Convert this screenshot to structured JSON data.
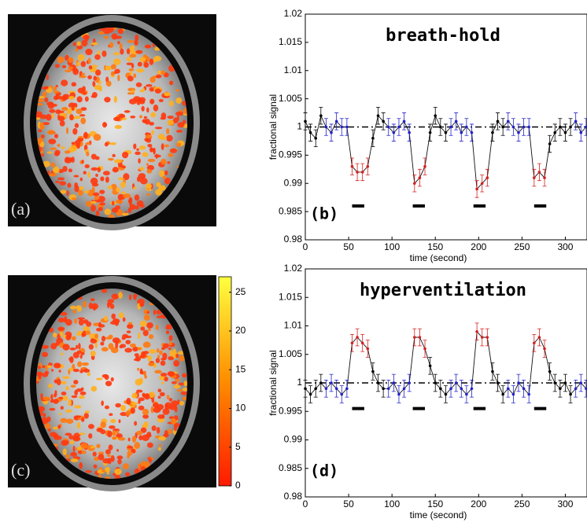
{
  "images": [
    {
      "label": "(a)"
    },
    {
      "label": "(c)",
      "colorbar": {
        "lim": [
          0,
          27
        ],
        "ticks": [
          0,
          5,
          10,
          15,
          20,
          25
        ]
      }
    }
  ],
  "chart_data": [
    {
      "type": "line",
      "title": "breath-hold",
      "panel": "(b)",
      "xlabel": "time (second)",
      "ylabel": "fractional signal",
      "xlim": [
        0,
        325
      ],
      "xticks": [
        0,
        50,
        100,
        150,
        200,
        250,
        300
      ],
      "ylim": [
        0.98,
        1.02
      ],
      "yticks": [
        0.98,
        0.985,
        0.99,
        0.995,
        1,
        1.005,
        1.01,
        1.015,
        1.02
      ],
      "reference": 1,
      "error": 0.0015,
      "bar_level": 0.986,
      "stimulus_bars": [
        [
          54,
          68
        ],
        [
          124,
          138
        ],
        [
          194,
          208
        ],
        [
          264,
          278
        ]
      ],
      "x": [
        0,
        6,
        12,
        18,
        24,
        30,
        36,
        42,
        48,
        54,
        60,
        66,
        72,
        78,
        84,
        90,
        96,
        102,
        108,
        114,
        120,
        126,
        132,
        138,
        144,
        150,
        156,
        162,
        168,
        174,
        180,
        186,
        192,
        198,
        204,
        210,
        216,
        222,
        228,
        234,
        240,
        246,
        252,
        258,
        264,
        270,
        276,
        282,
        288,
        294,
        300,
        306,
        312,
        318,
        324
      ],
      "values": [
        1.001,
        0.999,
        0.998,
        1.002,
        1.0,
        0.999,
        1.001,
        1.0,
        1.0,
        0.993,
        0.992,
        0.992,
        0.993,
        0.998,
        1.002,
        1.001,
        1.0,
        0.999,
        1.0,
        1.001,
        0.999,
        0.99,
        0.991,
        0.993,
        0.999,
        1.002,
        1.0,
        0.999,
        1.0,
        1.001,
        0.999,
        1.0,
        0.999,
        0.989,
        0.99,
        0.991,
        0.999,
        1.001,
        1.0,
        1.001,
        1.0,
        0.999,
        1.0,
        1.0,
        0.991,
        0.992,
        0.991,
        0.997,
        0.999,
        1.0,
        0.999,
        1.0,
        1.001,
        0.999,
        1.0
      ],
      "marker_colors": [
        "#000",
        "#000",
        "#000",
        "#000",
        "#2222cc",
        "#2222cc",
        "#2222cc",
        "#2222cc",
        "#2222cc",
        "#d42020",
        "#d42020",
        "#d42020",
        "#d42020",
        "#000",
        "#000",
        "#000",
        "#2222cc",
        "#2222cc",
        "#2222cc",
        "#2222cc",
        "#2222cc",
        "#d42020",
        "#d42020",
        "#d42020",
        "#000",
        "#000",
        "#000",
        "#000",
        "#2222cc",
        "#2222cc",
        "#2222cc",
        "#2222cc",
        "#2222cc",
        "#d42020",
        "#d42020",
        "#d42020",
        "#000",
        "#000",
        "#000",
        "#2222cc",
        "#2222cc",
        "#2222cc",
        "#2222cc",
        "#2222cc",
        "#d42020",
        "#d42020",
        "#d42020",
        "#000",
        "#000",
        "#000",
        "#000",
        "#000",
        "#2222cc",
        "#2222cc",
        "#2222cc"
      ]
    },
    {
      "type": "line",
      "title": "hyperventilation",
      "panel": "(d)",
      "xlabel": "time (second)",
      "ylabel": "fractional signal",
      "xlim": [
        0,
        325
      ],
      "xticks": [
        0,
        50,
        100,
        150,
        200,
        250,
        300
      ],
      "ylim": [
        0.98,
        1.02
      ],
      "yticks": [
        0.98,
        0.985,
        0.99,
        0.995,
        1,
        1.005,
        1.01,
        1.015,
        1.02
      ],
      "reference": 1,
      "error": 0.0015,
      "bar_level": 0.9955,
      "stimulus_bars": [
        [
          54,
          68
        ],
        [
          124,
          138
        ],
        [
          194,
          208
        ],
        [
          264,
          278
        ]
      ],
      "x": [
        0,
        6,
        12,
        18,
        24,
        30,
        36,
        42,
        48,
        54,
        60,
        66,
        72,
        78,
        84,
        90,
        96,
        102,
        108,
        114,
        120,
        126,
        132,
        138,
        144,
        150,
        156,
        162,
        168,
        174,
        180,
        186,
        192,
        198,
        204,
        210,
        216,
        222,
        228,
        234,
        240,
        246,
        252,
        258,
        264,
        270,
        276,
        282,
        288,
        294,
        300,
        306,
        312,
        318,
        324
      ],
      "values": [
        0.999,
        0.998,
        0.999,
        1.0,
        0.999,
        1.0,
        0.999,
        0.998,
        0.999,
        1.007,
        1.008,
        1.007,
        1.006,
        1.002,
        1.0,
        0.999,
        0.999,
        1.0,
        0.998,
        0.999,
        1.0,
        1.008,
        1.008,
        1.006,
        1.003,
        1.0,
        0.999,
        0.998,
        0.999,
        1.0,
        0.999,
        0.998,
        0.999,
        1.009,
        1.008,
        1.008,
        1.002,
        1.0,
        0.998,
        0.999,
        0.998,
        1.0,
        0.999,
        0.998,
        1.007,
        1.008,
        1.006,
        1.002,
        1.0,
        0.999,
        1.0,
        0.998,
        0.999,
        1.0,
        0.999
      ],
      "marker_colors": [
        "#000",
        "#000",
        "#000",
        "#000",
        "#2222cc",
        "#2222cc",
        "#2222cc",
        "#2222cc",
        "#2222cc",
        "#d42020",
        "#d42020",
        "#d42020",
        "#d42020",
        "#000",
        "#000",
        "#000",
        "#2222cc",
        "#2222cc",
        "#2222cc",
        "#2222cc",
        "#2222cc",
        "#d42020",
        "#d42020",
        "#d42020",
        "#000",
        "#000",
        "#000",
        "#000",
        "#2222cc",
        "#2222cc",
        "#2222cc",
        "#2222cc",
        "#2222cc",
        "#d42020",
        "#d42020",
        "#d42020",
        "#000",
        "#000",
        "#000",
        "#2222cc",
        "#2222cc",
        "#2222cc",
        "#2222cc",
        "#2222cc",
        "#d42020",
        "#d42020",
        "#d42020",
        "#000",
        "#000",
        "#000",
        "#000",
        "#000",
        "#2222cc",
        "#2222cc",
        "#2222cc"
      ]
    }
  ]
}
